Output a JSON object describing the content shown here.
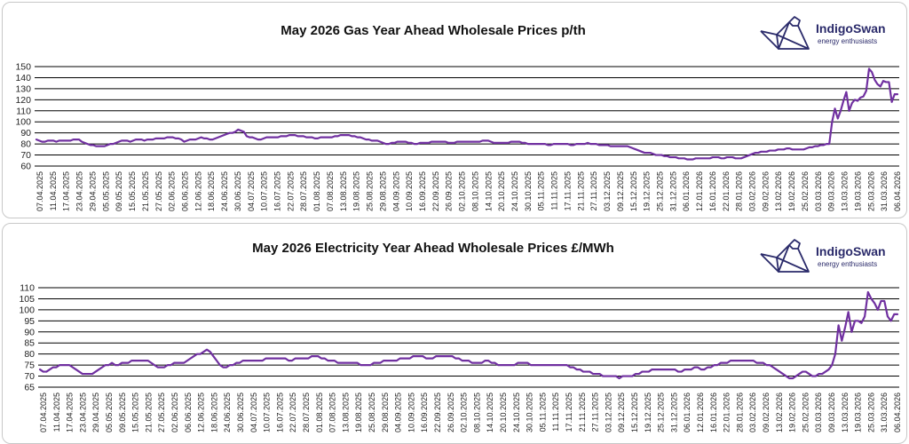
{
  "brand": {
    "name": "IndigoSwan",
    "tagline": "energy enthusiasts",
    "logo": "origami-swan-icon"
  },
  "colors": {
    "line": "#7030a0",
    "grid": "#000000",
    "text": "#222222",
    "brand": "#2a2a6a"
  },
  "chart_data": [
    {
      "type": "line",
      "title": "May 2026 Gas Year Ahead Wholesale Prices p/th",
      "xlabel": "",
      "ylabel": "",
      "ylim": [
        60,
        150
      ],
      "yticks": [
        60,
        70,
        80,
        90,
        100,
        110,
        120,
        130,
        140,
        150
      ],
      "grid": "horizontal",
      "xticks": [
        "07.04.2025",
        "11.04.2025",
        "17.04.2025",
        "23.04.2025",
        "29.04.2025",
        "05.05.2025",
        "09.05.2025",
        "15.05.2025",
        "21.05.2025",
        "27.05.2025",
        "02.06.2025",
        "06.06.2025",
        "12.06.2025",
        "18.06.2025",
        "24.06.2025",
        "30.06.2025",
        "04.07.2025",
        "10.07.2025",
        "16.07.2025",
        "22.07.2025",
        "28.07.2025",
        "01.08.2025",
        "07.08.2025",
        "13.08.2025",
        "19.08.2025",
        "25.08.2025",
        "29.08.2025",
        "04.09.2025",
        "10.09.2025",
        "16.09.2025",
        "22.09.2025",
        "26.09.2025",
        "02.10.2025",
        "08.10.2025",
        "14.10.2025",
        "20.10.2025",
        "24.10.2025",
        "30.10.2025",
        "05.11.2025",
        "11.11.2025",
        "17.11.2025",
        "21.11.2025",
        "27.11.2025",
        "03.12.2025",
        "09.12.2025",
        "15.12.2025",
        "19.12.2025",
        "25.12.2025",
        "31.12.2025",
        "06.01.2026",
        "12.01.2026",
        "16.01.2026",
        "22.01.2026",
        "28.01.2026",
        "03.02.2026",
        "09.02.2026",
        "13.02.2026",
        "19.02.2026",
        "25.02.2026",
        "03.03.2026",
        "09.03.2026",
        "13.03.2026",
        "19.03.2026",
        "25.03.2026",
        "31.03.2026",
        "06.04.2026"
      ],
      "series": [
        {
          "values": [
            84,
            83,
            82,
            82,
            83,
            83,
            83,
            82,
            83,
            83,
            83,
            83,
            83,
            84,
            84,
            84,
            82,
            81,
            80,
            79,
            79,
            78,
            78,
            78,
            78,
            79,
            80,
            80,
            81,
            82,
            83,
            83,
            83,
            82,
            83,
            84,
            84,
            84,
            83,
            84,
            84,
            84,
            85,
            85,
            85,
            85,
            86,
            86,
            86,
            85,
            85,
            84,
            82,
            83,
            84,
            84,
            84,
            85,
            86,
            85,
            85,
            84,
            84,
            85,
            86,
            87,
            88,
            89,
            90,
            90,
            91,
            93,
            92,
            91,
            87,
            86,
            86,
            85,
            84,
            84,
            85,
            86,
            86,
            86,
            86,
            86,
            87,
            87,
            87,
            88,
            88,
            88,
            87,
            87,
            87,
            86,
            86,
            86,
            85,
            85,
            86,
            86,
            86,
            86,
            86,
            87,
            87,
            88,
            88,
            88,
            88,
            87,
            87,
            86,
            86,
            85,
            84,
            84,
            83,
            83,
            83,
            82,
            81,
            80,
            80,
            81,
            81,
            82,
            82,
            82,
            82,
            81,
            81,
            80,
            80,
            81,
            81,
            81,
            81,
            82,
            82,
            82,
            82,
            82,
            82,
            81,
            81,
            81,
            82,
            82,
            82,
            82,
            82,
            82,
            82,
            82,
            82,
            83,
            83,
            83,
            82,
            81,
            81,
            81,
            81,
            81,
            81,
            82,
            82,
            82,
            82,
            81,
            81,
            80,
            80,
            80,
            80,
            80,
            80,
            80,
            79,
            79,
            80,
            80,
            80,
            80,
            80,
            80,
            79,
            79,
            80,
            80,
            80,
            80,
            81,
            80,
            80,
            80,
            79,
            79,
            79,
            79,
            78,
            78,
            78,
            78,
            78,
            78,
            78,
            77,
            76,
            75,
            74,
            73,
            72,
            72,
            72,
            71,
            70,
            70,
            70,
            69,
            69,
            68,
            68,
            68,
            67,
            67,
            67,
            66,
            66,
            66,
            67,
            67,
            67,
            67,
            67,
            67,
            68,
            68,
            68,
            67,
            67,
            68,
            68,
            68,
            67,
            67,
            67,
            68,
            69,
            70,
            71,
            72,
            72,
            73,
            73,
            73,
            74,
            74,
            74,
            75,
            75,
            75,
            76,
            76,
            75,
            75,
            75,
            75,
            75,
            76,
            77,
            77,
            78,
            78,
            79,
            79,
            80,
            80,
            100,
            112,
            103,
            110,
            119,
            127,
            110,
            117,
            120,
            119,
            122,
            123,
            128,
            148,
            145,
            138,
            134,
            132,
            137,
            136,
            136,
            118,
            125,
            125
          ]
        }
      ]
    },
    {
      "type": "line",
      "title": "May 2026 Electricity Year Ahead Wholesale Prices £/MWh",
      "xlabel": "",
      "ylabel": "",
      "ylim": [
        65,
        110
      ],
      "yticks": [
        65,
        70,
        75,
        80,
        85,
        90,
        95,
        100,
        105,
        110
      ],
      "grid": "horizontal",
      "xticks": [
        "07.04.2025",
        "11.04.2025",
        "17.04.2025",
        "23.04.2025",
        "29.04.2025",
        "05.05.2025",
        "09.05.2025",
        "15.05.2025",
        "21.05.2025",
        "27.05.2025",
        "02.06.2025",
        "06.06.2025",
        "12.06.2025",
        "18.06.2025",
        "24.06.2025",
        "30.06.2025",
        "04.07.2025",
        "10.07.2025",
        "16.07.2025",
        "22.07.2025",
        "28.07.2025",
        "01.08.2025",
        "07.08.2025",
        "13.08.2025",
        "19.08.2025",
        "25.08.2025",
        "29.08.2025",
        "04.09.2025",
        "10.09.2025",
        "16.09.2025",
        "22.09.2025",
        "26.09.2025",
        "02.10.2025",
        "08.10.2025",
        "14.10.2025",
        "20.10.2025",
        "24.10.2025",
        "30.10.2025",
        "05.11.2025",
        "11.11.2025",
        "17.11.2025",
        "21.11.2025",
        "27.11.2025",
        "03.12.2025",
        "09.12.2025",
        "15.12.2025",
        "19.12.2025",
        "25.12.2025",
        "31.12.2025",
        "06.01.2026",
        "12.01.2026",
        "16.01.2026",
        "22.01.2026",
        "28.01.2026",
        "03.02.2026",
        "09.02.2026",
        "13.02.2026",
        "19.02.2026",
        "25.02.2026",
        "03.03.2026",
        "09.03.2026",
        "13.03.2026",
        "19.03.2026",
        "25.03.2026",
        "31.03.2026",
        "06.04.2026"
      ],
      "series": [
        {
          "values": [
            73,
            72,
            72,
            73,
            74,
            74,
            75,
            75,
            75,
            75,
            74,
            73,
            72,
            71,
            71,
            71,
            71,
            72,
            73,
            74,
            75,
            75,
            76,
            75,
            75,
            76,
            76,
            76,
            77,
            77,
            77,
            77,
            77,
            77,
            76,
            75,
            74,
            74,
            74,
            75,
            75,
            76,
            76,
            76,
            76,
            77,
            78,
            79,
            80,
            80,
            81,
            82,
            81,
            79,
            77,
            75,
            74,
            74,
            75,
            75,
            76,
            76,
            77,
            77,
            77,
            77,
            77,
            77,
            77,
            78,
            78,
            78,
            78,
            78,
            78,
            78,
            77,
            77,
            78,
            78,
            78,
            78,
            78,
            79,
            79,
            79,
            78,
            78,
            77,
            77,
            77,
            76,
            76,
            76,
            76,
            76,
            76,
            76,
            75,
            75,
            75,
            75,
            76,
            76,
            76,
            77,
            77,
            77,
            77,
            77,
            78,
            78,
            78,
            78,
            79,
            79,
            79,
            79,
            78,
            78,
            78,
            79,
            79,
            79,
            79,
            79,
            79,
            78,
            78,
            77,
            77,
            77,
            76,
            76,
            76,
            76,
            77,
            77,
            76,
            76,
            75,
            75,
            75,
            75,
            75,
            75,
            76,
            76,
            76,
            76,
            75,
            75,
            75,
            75,
            75,
            75,
            75,
            75,
            75,
            75,
            75,
            75,
            74,
            74,
            73,
            73,
            72,
            72,
            72,
            71,
            71,
            71,
            70,
            70,
            70,
            70,
            70,
            69,
            70,
            70,
            70,
            70,
            71,
            71,
            72,
            72,
            72,
            73,
            73,
            73,
            73,
            73,
            73,
            73,
            73,
            72,
            72,
            73,
            73,
            73,
            74,
            74,
            73,
            73,
            74,
            74,
            75,
            75,
            76,
            76,
            76,
            77,
            77,
            77,
            77,
            77,
            77,
            77,
            77,
            76,
            76,
            76,
            75,
            75,
            74,
            73,
            72,
            71,
            70,
            69,
            69,
            70,
            71,
            72,
            72,
            71,
            70,
            70,
            71,
            71,
            72,
            73,
            75,
            80,
            93,
            86,
            92,
            99,
            90,
            95,
            95,
            94,
            97,
            108,
            105,
            103,
            100,
            104,
            104,
            97,
            95,
            98,
            98
          ]
        }
      ]
    }
  ]
}
